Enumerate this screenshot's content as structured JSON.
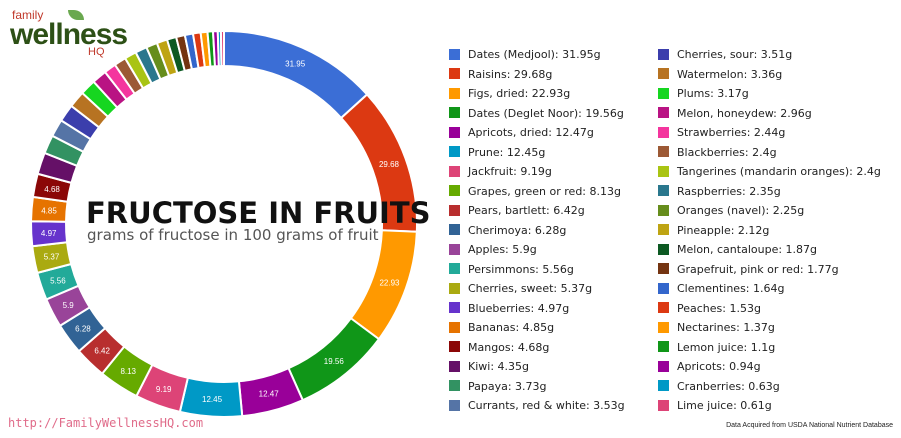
{
  "logo": {
    "line1": "family",
    "line2": "wellness",
    "line3": "HQ"
  },
  "title": "FRUCTOSE IN FRUITS",
  "subtitle": "grams of fructose in 100 grams of fruit",
  "url": "http://FamilyWellnessHQ.com",
  "source": "Data Acquired from USDA National Nutrient Database",
  "chart_data": {
    "type": "pie",
    "style": "donut",
    "legend_position": "right",
    "series": [
      {
        "label": "Dates (Medjool): 31.95g",
        "name": "Dates (Medjool)",
        "value": 31.95,
        "data_label": "31.95",
        "color": "#3b6ed6"
      },
      {
        "label": "Raisins: 29.68g",
        "name": "Raisins",
        "value": 29.68,
        "data_label": "29.68",
        "color": "#dc3912"
      },
      {
        "label": "Figs, dried: 22.93g",
        "name": "Figs, dried",
        "value": 22.93,
        "data_label": "22.93",
        "color": "#ff9900"
      },
      {
        "label": "Dates (Deglet Noor): 19.56g",
        "name": "Dates (Deglet Noor)",
        "value": 19.56,
        "data_label": "19.56",
        "color": "#109618"
      },
      {
        "label": "Apricots, dried: 12.47g",
        "name": "Apricots, dried",
        "value": 12.47,
        "data_label": "12.47",
        "color": "#990099"
      },
      {
        "label": "Prune: 12.45g",
        "name": "Prune",
        "value": 12.45,
        "data_label": "12.45",
        "color": "#0099c6"
      },
      {
        "label": "Jackfruit: 9.19g",
        "name": "Jackfruit",
        "value": 9.19,
        "data_label": "9.19",
        "color": "#dd4477"
      },
      {
        "label": "Grapes, green or red: 8.13g",
        "name": "Grapes, green or red",
        "value": 8.13,
        "data_label": "8.13",
        "color": "#66aa00"
      },
      {
        "label": "Pears, bartlett: 6.42g",
        "name": "Pears, bartlett",
        "value": 6.42,
        "data_label": "6.42",
        "color": "#b82e2e"
      },
      {
        "label": "Cherimoya: 6.28g",
        "name": "Cherimoya",
        "value": 6.28,
        "data_label": "6.28",
        "color": "#316395"
      },
      {
        "label": "Apples: 5.9g",
        "name": "Apples",
        "value": 5.9,
        "data_label": "5.9",
        "color": "#994499"
      },
      {
        "label": "Persimmons: 5.56g",
        "name": "Persimmons",
        "value": 5.56,
        "data_label": "5.56",
        "color": "#22aa99"
      },
      {
        "label": "Cherries, sweet: 5.37g",
        "name": "Cherries, sweet",
        "value": 5.37,
        "data_label": "5.37",
        "color": "#aaaa11"
      },
      {
        "label": "Blueberries: 4.97g",
        "name": "Blueberries",
        "value": 4.97,
        "data_label": "4.97",
        "color": "#6633cc"
      },
      {
        "label": "Bananas: 4.85g",
        "name": "Bananas",
        "value": 4.85,
        "data_label": "4.85",
        "color": "#e67300"
      },
      {
        "label": "Mangos: 4.68g",
        "name": "Mangos",
        "value": 4.68,
        "data_label": "4.68",
        "color": "#8b0707"
      },
      {
        "label": "Kiwi: 4.35g",
        "name": "Kiwi",
        "value": 4.35,
        "data_label": "",
        "color": "#651067"
      },
      {
        "label": "Papaya: 3.73g",
        "name": "Papaya",
        "value": 3.73,
        "data_label": "",
        "color": "#329262"
      },
      {
        "label": "Currants, red & white: 3.53g",
        "name": "Currants, red & white",
        "value": 3.53,
        "data_label": "",
        "color": "#5574a6"
      },
      {
        "label": "Cherries, sour: 3.51g",
        "name": "Cherries, sour",
        "value": 3.51,
        "data_label": "",
        "color": "#3b3eac"
      },
      {
        "label": "Watermelon: 3.36g",
        "name": "Watermelon",
        "value": 3.36,
        "data_label": "",
        "color": "#b77322"
      },
      {
        "label": "Plums: 3.17g",
        "name": "Plums",
        "value": 3.17,
        "data_label": "",
        "color": "#16d620"
      },
      {
        "label": "Melon, honeydew: 2.96g",
        "name": "Melon, honeydew",
        "value": 2.96,
        "data_label": "",
        "color": "#b91383"
      },
      {
        "label": "Strawberries: 2.44g",
        "name": "Strawberries",
        "value": 2.44,
        "data_label": "",
        "color": "#f4359e"
      },
      {
        "label": "Blackberries: 2.4g",
        "name": "Blackberries",
        "value": 2.4,
        "data_label": "",
        "color": "#9c5935"
      },
      {
        "label": "Tangerines (mandarin oranges): 2.4g",
        "name": "Tangerines (mandarin oranges)",
        "value": 2.4,
        "data_label": "",
        "color": "#a9c413"
      },
      {
        "label": "Raspberries: 2.35g",
        "name": "Raspberries",
        "value": 2.35,
        "data_label": "",
        "color": "#2a778d"
      },
      {
        "label": "Oranges (navel): 2.25g",
        "name": "Oranges (navel)",
        "value": 2.25,
        "data_label": "",
        "color": "#668d1c"
      },
      {
        "label": "Pineapple: 2.12g",
        "name": "Pineapple",
        "value": 2.12,
        "data_label": "",
        "color": "#bea413"
      },
      {
        "label": "Melon, cantaloupe: 1.87g",
        "name": "Melon, cantaloupe",
        "value": 1.87,
        "data_label": "",
        "color": "#0c5922"
      },
      {
        "label": "Grapefruit, pink or red: 1.77g",
        "name": "Grapefruit, pink or red",
        "value": 1.77,
        "data_label": "",
        "color": "#743411"
      },
      {
        "label": "Clementines: 1.64g",
        "name": "Clementines",
        "value": 1.64,
        "data_label": "",
        "color": "#3366cc"
      },
      {
        "label": "Peaches: 1.53g",
        "name": "Peaches",
        "value": 1.53,
        "data_label": "",
        "color": "#dc3912"
      },
      {
        "label": "Nectarines: 1.37g",
        "name": "Nectarines",
        "value": 1.37,
        "data_label": "",
        "color": "#ff9900"
      },
      {
        "label": "Lemon juice: 1.1g",
        "name": "Lemon juice",
        "value": 1.1,
        "data_label": "",
        "color": "#109618"
      },
      {
        "label": "Apricots: 0.94g",
        "name": "Apricots",
        "value": 0.94,
        "data_label": "",
        "color": "#990099"
      },
      {
        "label": "Cranberries: 0.63g",
        "name": "Cranberries",
        "value": 0.63,
        "data_label": "",
        "color": "#0099c6"
      },
      {
        "label": "Lime juice: 0.61g",
        "name": "Lime juice",
        "value": 0.61,
        "data_label": "",
        "color": "#dd4477"
      }
    ]
  }
}
